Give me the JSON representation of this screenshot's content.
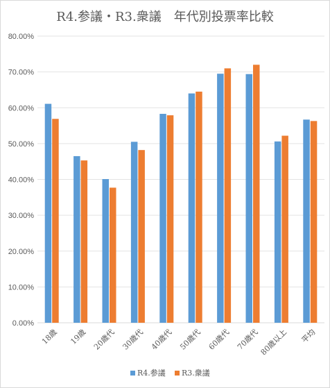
{
  "chart_data": {
    "type": "bar",
    "title": "R4.参議・R3.衆議　年代別投票率比較",
    "categories": [
      "18歳",
      "19歳",
      "20歳代",
      "30歳代",
      "40歳代",
      "50歳代",
      "60歳代",
      "70歳代",
      "80歳以上",
      "平均"
    ],
    "series": [
      {
        "name": "R4.参議",
        "color": "#5b9bd5",
        "values": [
          61.1,
          46.5,
          40.1,
          50.5,
          58.3,
          64.0,
          69.5,
          69.4,
          50.6,
          56.7
        ]
      },
      {
        "name": "R3.衆議",
        "color": "#ed7d31",
        "values": [
          56.9,
          45.3,
          37.7,
          48.2,
          57.9,
          64.5,
          71.0,
          72.0,
          52.2,
          56.3
        ]
      }
    ],
    "yticks": [
      "0.00%",
      "10.00%",
      "20.00%",
      "30.00%",
      "40.00%",
      "50.00%",
      "60.00%",
      "70.00%",
      "80.00%"
    ],
    "ylim": [
      0,
      80
    ],
    "xlabel": "",
    "ylabel": "",
    "grid": true,
    "legend_position": "bottom"
  }
}
